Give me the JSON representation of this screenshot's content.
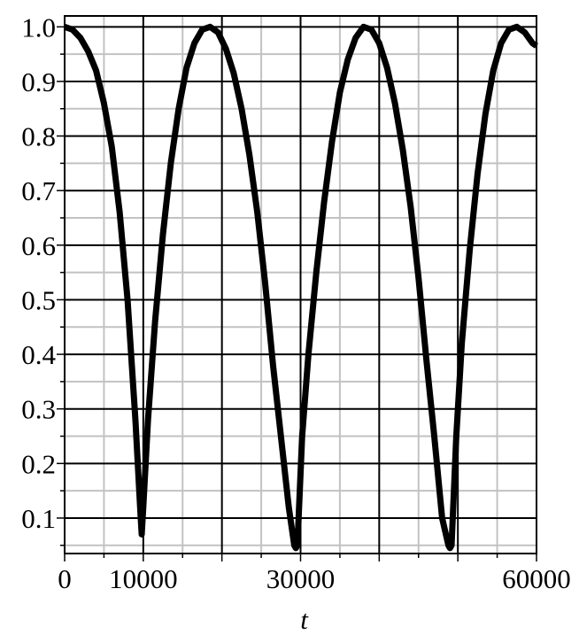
{
  "chart_data": {
    "type": "line",
    "title": "",
    "xlabel": "t",
    "ylabel": "",
    "xlim": [
      0,
      60000
    ],
    "ylim": [
      0.035,
      1.02
    ],
    "grid": true,
    "x_tick_labels": [
      {
        "value": 0,
        "label": "0"
      },
      {
        "value": 10000,
        "label": "10000"
      },
      {
        "value": 30000,
        "label": "30000"
      },
      {
        "value": 60000,
        "label": "60000"
      }
    ],
    "y_tick_labels": [
      {
        "value": 0.1,
        "label": "0.1"
      },
      {
        "value": 0.2,
        "label": "0.2"
      },
      {
        "value": 0.3,
        "label": "0.3"
      },
      {
        "value": 0.4,
        "label": "0.4"
      },
      {
        "value": 0.5,
        "label": "0.5"
      },
      {
        "value": 0.6,
        "label": "0.6"
      },
      {
        "value": 0.7,
        "label": "0.7"
      },
      {
        "value": 0.8,
        "label": "0.8"
      },
      {
        "value": 0.9,
        "label": "0.9"
      },
      {
        "value": 1.0,
        "label": "1.0"
      }
    ],
    "series": [
      {
        "x": [
          0,
          1000,
          2000,
          3000,
          4000,
          5000,
          6000,
          7000,
          8000,
          9000,
          9600,
          9800,
          10000,
          10600,
          11500,
          12500,
          13500,
          14500,
          15500,
          16500,
          17500,
          18500,
          19500,
          20500,
          21500,
          22500,
          23500,
          24500,
          25500,
          26500,
          27500,
          28500,
          29200,
          29400,
          29600,
          30200,
          31000,
          32000,
          33000,
          34000,
          35000,
          36000,
          37000,
          38000,
          39000,
          40000,
          41000,
          42000,
          43000,
          44000,
          45000,
          46000,
          47000,
          48000,
          48800,
          49000,
          49200,
          49800,
          50500,
          51500,
          52500,
          53500,
          54500,
          55500,
          56500,
          57500,
          58500,
          59500,
          60000
        ],
        "y": [
          1.0,
          0.995,
          0.98,
          0.955,
          0.92,
          0.86,
          0.78,
          0.66,
          0.5,
          0.28,
          0.12,
          0.07,
          0.12,
          0.28,
          0.46,
          0.62,
          0.75,
          0.85,
          0.925,
          0.97,
          0.995,
          1.0,
          0.99,
          0.96,
          0.915,
          0.85,
          0.765,
          0.66,
          0.53,
          0.38,
          0.25,
          0.12,
          0.05,
          0.045,
          0.05,
          0.25,
          0.4,
          0.55,
          0.68,
          0.79,
          0.88,
          0.94,
          0.98,
          1.0,
          0.995,
          0.97,
          0.925,
          0.86,
          0.775,
          0.67,
          0.54,
          0.39,
          0.25,
          0.1,
          0.05,
          0.045,
          0.05,
          0.25,
          0.42,
          0.59,
          0.73,
          0.84,
          0.92,
          0.97,
          0.995,
          1.0,
          0.99,
          0.97,
          0.965
        ]
      }
    ]
  }
}
